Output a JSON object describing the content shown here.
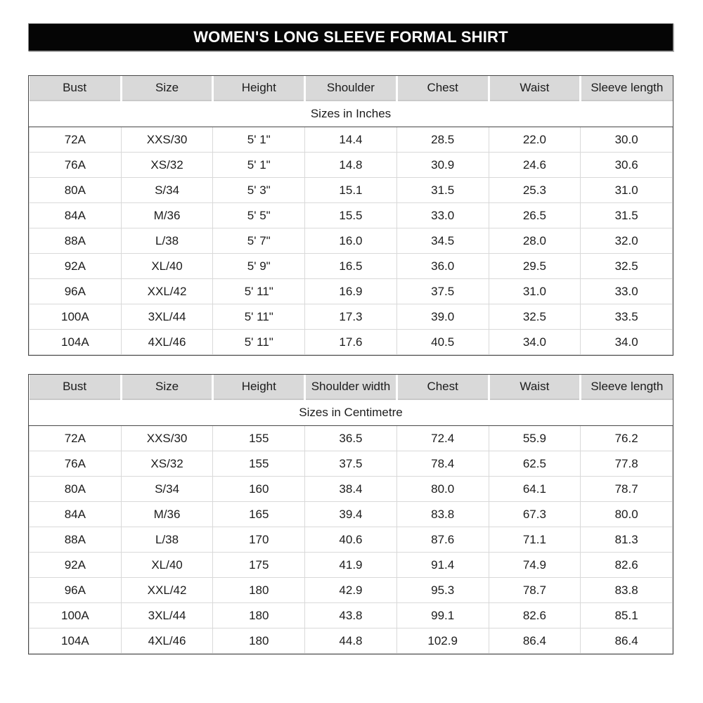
{
  "page_title": "WOMEN'S LONG SLEEVE FORMAL SHIRT",
  "colors": {
    "banner_bg": "#050505",
    "banner_text": "#ffffff",
    "header_row_bg": "#d9d9d9",
    "table_border": "#474747",
    "grid_line": "#d9d9d9"
  },
  "chart_data": [
    {
      "type": "table",
      "title": "Sizes in Inches",
      "columns": [
        "Bust",
        "Size",
        "Height",
        "Shoulder",
        "Chest",
        "Waist",
        "Sleeve length"
      ],
      "rows": [
        [
          "72A",
          "XXS/30",
          "5' 1\"",
          "14.4",
          "28.5",
          "22.0",
          "30.0"
        ],
        [
          "76A",
          "XS/32",
          "5' 1\"",
          "14.8",
          "30.9",
          "24.6",
          "30.6"
        ],
        [
          "80A",
          "S/34",
          "5' 3\"",
          "15.1",
          "31.5",
          "25.3",
          "31.0"
        ],
        [
          "84A",
          "M/36",
          "5' 5\"",
          "15.5",
          "33.0",
          "26.5",
          "31.5"
        ],
        [
          "88A",
          "L/38",
          "5' 7\"",
          "16.0",
          "34.5",
          "28.0",
          "32.0"
        ],
        [
          "92A",
          "XL/40",
          "5' 9\"",
          "16.5",
          "36.0",
          "29.5",
          "32.5"
        ],
        [
          "96A",
          "XXL/42",
          "5' 11\"",
          "16.9",
          "37.5",
          "31.0",
          "33.0"
        ],
        [
          "100A",
          "3XL/44",
          "5' 11\"",
          "17.3",
          "39.0",
          "32.5",
          "33.5"
        ],
        [
          "104A",
          "4XL/46",
          "5' 11\"",
          "17.6",
          "40.5",
          "34.0",
          "34.0"
        ]
      ]
    },
    {
      "type": "table",
      "title": "Sizes in Centimetre",
      "columns": [
        "Bust",
        "Size",
        "Height",
        "Shoulder width",
        "Chest",
        "Waist",
        "Sleeve length"
      ],
      "rows": [
        [
          "72A",
          "XXS/30",
          "155",
          "36.5",
          "72.4",
          "55.9",
          "76.2"
        ],
        [
          "76A",
          "XS/32",
          "155",
          "37.5",
          "78.4",
          "62.5",
          "77.8"
        ],
        [
          "80A",
          "S/34",
          "160",
          "38.4",
          "80.0",
          "64.1",
          "78.7"
        ],
        [
          "84A",
          "M/36",
          "165",
          "39.4",
          "83.8",
          "67.3",
          "80.0"
        ],
        [
          "88A",
          "L/38",
          "170",
          "40.6",
          "87.6",
          "71.1",
          "81.3"
        ],
        [
          "92A",
          "XL/40",
          "175",
          "41.9",
          "91.4",
          "74.9",
          "82.6"
        ],
        [
          "96A",
          "XXL/42",
          "180",
          "42.9",
          "95.3",
          "78.7",
          "83.8"
        ],
        [
          "100A",
          "3XL/44",
          "180",
          "43.8",
          "99.1",
          "82.6",
          "85.1"
        ],
        [
          "104A",
          "4XL/46",
          "180",
          "44.8",
          "102.9",
          "86.4",
          "86.4"
        ]
      ]
    }
  ]
}
